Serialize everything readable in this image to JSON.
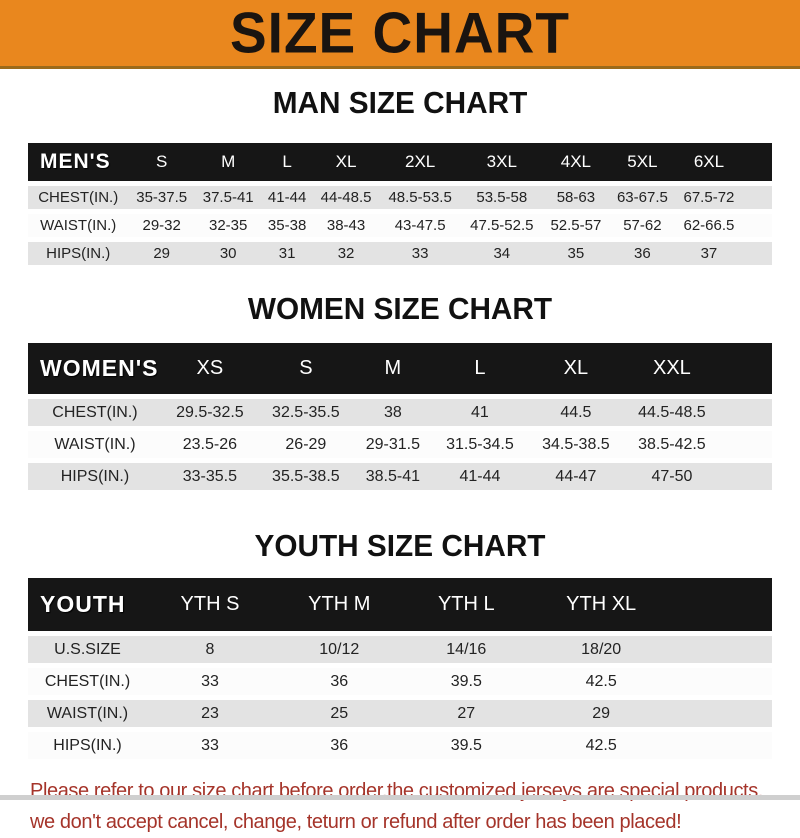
{
  "banner": {
    "title": "SIZE CHART"
  },
  "sections": {
    "men": {
      "heading": "MAN SIZE CHART",
      "table": {
        "corner": "MEN'S",
        "columns": [
          "S",
          "M",
          "L",
          "XL",
          "2XL",
          "3XL",
          "4XL",
          "5XL",
          "6XL"
        ],
        "rows": [
          {
            "label": "CHEST(IN.)",
            "values": [
              "35-37.5",
              "37.5-41",
              "41-44",
              "44-48.5",
              "48.5-53.5",
              "53.5-58",
              "58-63",
              "63-67.5",
              "67.5-72"
            ]
          },
          {
            "label": "WAIST(IN.)",
            "values": [
              "29-32",
              "32-35",
              "35-38",
              "38-43",
              "43-47.5",
              "47.5-52.5",
              "52.5-57",
              "57-62",
              "62-66.5"
            ]
          },
          {
            "label": "HIPS(IN.)",
            "values": [
              "29",
              "30",
              "31",
              "32",
              "33",
              "34",
              "35",
              "36",
              "37"
            ]
          }
        ]
      }
    },
    "women": {
      "heading": "WOMEN SIZE CHART",
      "table": {
        "corner": "WOMEN'S",
        "columns": [
          "XS",
          "S",
          "M",
          "L",
          "XL",
          "XXL"
        ],
        "rows": [
          {
            "label": "CHEST(IN.)",
            "values": [
              "29.5-32.5",
              "32.5-35.5",
              "38",
              "41",
              "44.5",
              "44.5-48.5"
            ]
          },
          {
            "label": "WAIST(IN.)",
            "values": [
              "23.5-26",
              "26-29",
              "29-31.5",
              "31.5-34.5",
              "34.5-38.5",
              "38.5-42.5"
            ]
          },
          {
            "label": "HIPS(IN.)",
            "values": [
              "33-35.5",
              "35.5-38.5",
              "38.5-41",
              "41-44",
              "44-47",
              "47-50"
            ]
          }
        ]
      }
    },
    "youth": {
      "heading": "YOUTH SIZE CHART",
      "table": {
        "corner": "YOUTH",
        "columns": [
          "YTH S",
          "YTH M",
          "YTH L",
          "YTH XL"
        ],
        "rows": [
          {
            "label": "U.S.SIZE",
            "values": [
              "8",
              "10/12",
              "14/16",
              "18/20"
            ]
          },
          {
            "label": "CHEST(IN.)",
            "values": [
              "33",
              "36",
              "39.5",
              "42.5"
            ]
          },
          {
            "label": "WAIST(IN.)",
            "values": [
              "23",
              "25",
              "27",
              "29"
            ]
          },
          {
            "label": "HIPS(IN.)",
            "values": [
              "33",
              "36",
              "39.5",
              "42.5"
            ]
          }
        ]
      }
    }
  },
  "footer_note": {
    "line1": "Please refer to our size chart before order,the customized jerseys are special products,",
    "line2": "we don't accept cancel, change, teturn or refund after order has been placed!"
  },
  "colors": {
    "banner_orange": "#E9871E",
    "header_bar_black": "#161616",
    "row_gray": "#E3E3E3",
    "row_white": "#FCFCFC",
    "note_red": "#A5342A",
    "heading_black": "#111111"
  }
}
